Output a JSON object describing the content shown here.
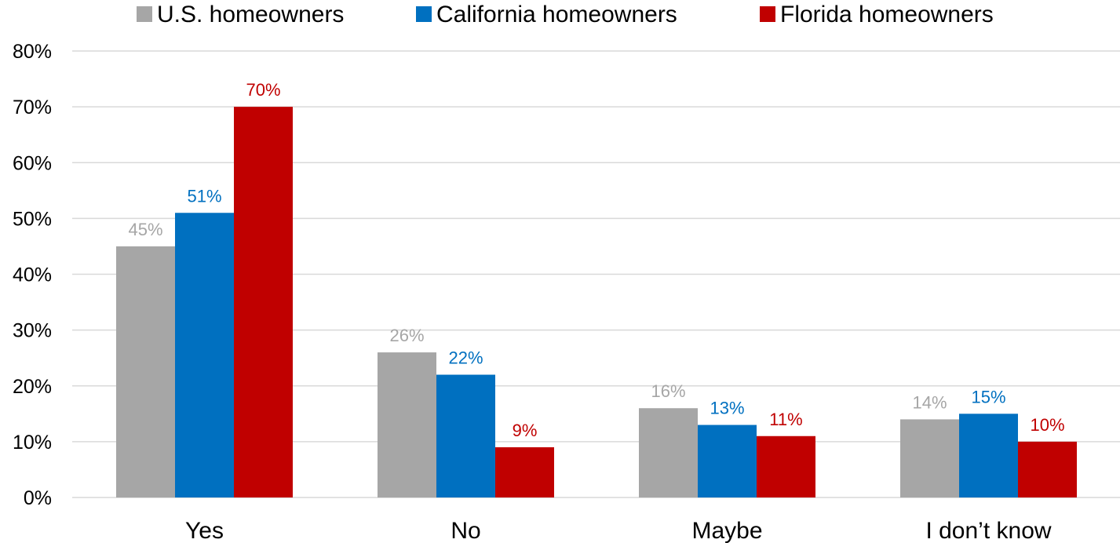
{
  "chart_data": {
    "type": "bar",
    "categories": [
      "Yes",
      "No",
      "Maybe",
      "I don’t know"
    ],
    "series": [
      {
        "name": "U.S. homeowners",
        "color": "#a6a6a6",
        "values": [
          45,
          26,
          16,
          14
        ]
      },
      {
        "name": "California homeowners",
        "color": "#0070c0",
        "values": [
          51,
          22,
          13,
          15
        ]
      },
      {
        "name": "Florida homeowners",
        "color": "#c00000",
        "values": [
          70,
          9,
          11,
          10
        ]
      }
    ],
    "data_labels": [
      [
        "45%",
        "26%",
        "16%",
        "14%"
      ],
      [
        "51%",
        "22%",
        "13%",
        "15%"
      ],
      [
        "70%",
        "9%",
        "11%",
        "10%"
      ]
    ],
    "yticks": [
      0,
      10,
      20,
      30,
      40,
      50,
      60,
      70,
      80
    ],
    "ytick_labels": [
      "0%",
      "10%",
      "20%",
      "30%",
      "40%",
      "50%",
      "60%",
      "70%",
      "80%"
    ],
    "ylim": [
      0,
      80
    ],
    "grid": true,
    "legend_position": "top-center",
    "title": "",
    "xlabel": "",
    "ylabel": ""
  }
}
